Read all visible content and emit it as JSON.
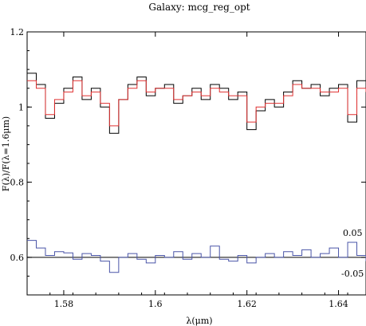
{
  "chart_data": {
    "type": "line",
    "title": "Galaxy: mcg_reg_opt",
    "xlabel": "λ(μm)",
    "ylabel": "F(λ)/F(λ=1.6μm)",
    "xlim": [
      1.572,
      1.646
    ],
    "ylim": [
      0.5,
      1.2
    ],
    "xticks": [
      1.58,
      1.6,
      1.62,
      1.64
    ],
    "xtick_labels": [
      "1.58",
      "1.6",
      "1.62",
      "1.64"
    ],
    "yticks": [
      0.6,
      0.8,
      1.0,
      1.2
    ],
    "ytick_labels": [
      "0.6",
      "0.8",
      "1",
      "1.2"
    ],
    "grid": false,
    "residual_baseline": 0.6,
    "residual_labels": [
      "0.05",
      "-0.05"
    ],
    "series": [
      {
        "role": "observed",
        "color": "#000000",
        "x": [
          1.572,
          1.574,
          1.576,
          1.578,
          1.58,
          1.582,
          1.584,
          1.586,
          1.588,
          1.59,
          1.592,
          1.594,
          1.596,
          1.598,
          1.6,
          1.602,
          1.604,
          1.606,
          1.608,
          1.61,
          1.612,
          1.614,
          1.616,
          1.618,
          1.62,
          1.622,
          1.624,
          1.626,
          1.628,
          1.63,
          1.632,
          1.634,
          1.636,
          1.638,
          1.64,
          1.642,
          1.644,
          1.646
        ],
        "y": [
          1.09,
          1.06,
          0.97,
          1.01,
          1.05,
          1.08,
          1.02,
          1.05,
          1.0,
          0.93,
          1.02,
          1.06,
          1.08,
          1.03,
          1.05,
          1.06,
          1.01,
          1.03,
          1.05,
          1.02,
          1.06,
          1.05,
          1.02,
          1.04,
          0.94,
          0.99,
          1.02,
          1.0,
          1.04,
          1.07,
          1.05,
          1.06,
          1.03,
          1.05,
          1.06,
          0.96,
          1.07,
          1.05
        ]
      },
      {
        "role": "model",
        "color": "#e03030",
        "x": [
          1.572,
          1.574,
          1.576,
          1.578,
          1.58,
          1.582,
          1.584,
          1.586,
          1.588,
          1.59,
          1.592,
          1.594,
          1.596,
          1.598,
          1.6,
          1.602,
          1.604,
          1.606,
          1.608,
          1.61,
          1.612,
          1.614,
          1.616,
          1.618,
          1.62,
          1.622,
          1.624,
          1.626,
          1.628,
          1.63,
          1.632,
          1.634,
          1.636,
          1.638,
          1.64,
          1.642,
          1.644,
          1.646
        ],
        "y": [
          1.07,
          1.05,
          0.98,
          1.02,
          1.04,
          1.07,
          1.03,
          1.04,
          1.01,
          0.95,
          1.02,
          1.05,
          1.07,
          1.04,
          1.05,
          1.05,
          1.02,
          1.03,
          1.04,
          1.03,
          1.05,
          1.04,
          1.03,
          1.03,
          0.96,
          1.0,
          1.01,
          1.01,
          1.03,
          1.06,
          1.05,
          1.05,
          1.04,
          1.04,
          1.05,
          0.98,
          1.05,
          1.04
        ]
      },
      {
        "role": "residual",
        "color": "#4a55a8",
        "x": [
          1.572,
          1.574,
          1.576,
          1.578,
          1.58,
          1.582,
          1.584,
          1.586,
          1.588,
          1.59,
          1.592,
          1.594,
          1.596,
          1.598,
          1.6,
          1.602,
          1.604,
          1.606,
          1.608,
          1.61,
          1.612,
          1.614,
          1.616,
          1.618,
          1.62,
          1.622,
          1.624,
          1.626,
          1.628,
          1.63,
          1.632,
          1.634,
          1.636,
          1.638,
          1.64,
          1.642,
          1.644,
          1.646
        ],
        "y": [
          0.645,
          0.625,
          0.605,
          0.615,
          0.612,
          0.595,
          0.61,
          0.605,
          0.59,
          0.56,
          0.6,
          0.61,
          0.595,
          0.585,
          0.605,
          0.6,
          0.615,
          0.595,
          0.61,
          0.6,
          0.63,
          0.595,
          0.59,
          0.605,
          0.585,
          0.6,
          0.61,
          0.6,
          0.615,
          0.605,
          0.62,
          0.6,
          0.61,
          0.625,
          0.6,
          0.64,
          0.605,
          0.59
        ]
      }
    ]
  }
}
